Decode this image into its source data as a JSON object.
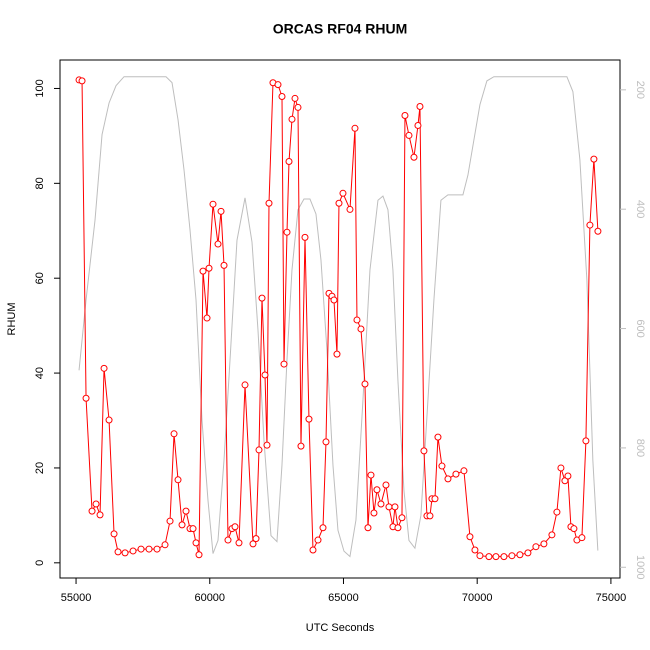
{
  "chart_data": {
    "type": "line",
    "title": "ORCAS RF04 RHUM",
    "x_label": "UTC Seconds",
    "y_label": "RHUM",
    "xlim": [
      54400,
      75340
    ],
    "ylim": [
      -3.2,
      106
    ],
    "y2lim": [
      1018,
      150
    ],
    "xticks": [
      55000,
      60000,
      65000,
      70000,
      75000
    ],
    "yticks": [
      0,
      20,
      40,
      60,
      80,
      100
    ],
    "y2ticks": [
      200,
      400,
      600,
      800,
      1000
    ],
    "series": [
      {
        "color": "#ff0000",
        "markers": true,
        "x": [
          55112,
          55224,
          55374,
          55598,
          55748,
          55897,
          56047,
          56234,
          56421,
          56570,
          56832,
          57131,
          57430,
          57729,
          58028,
          58327,
          58514,
          58664,
          58813,
          58963,
          59112,
          59262,
          59374,
          59486,
          59598,
          59748,
          59897,
          59972,
          60121,
          60308,
          60421,
          60533,
          60682,
          60832,
          60944,
          61093,
          61318,
          61617,
          61729,
          61841,
          61953,
          62065,
          62140,
          62215,
          62364,
          62551,
          62701,
          62776,
          62888,
          62963,
          63075,
          63187,
          63299,
          63411,
          63561,
          63710,
          63860,
          64047,
          64234,
          64346,
          64458,
          64570,
          64645,
          64757,
          64832,
          64981,
          65243,
          65430,
          65505,
          65654,
          65804,
          65916,
          66028,
          66140,
          66252,
          66402,
          66589,
          66701,
          66850,
          66925,
          67037,
          67187,
          67299,
          67449,
          67636,
          67785,
          67860,
          68009,
          68121,
          68234,
          68308,
          68421,
          68533,
          68682,
          68907,
          69206,
          69505,
          69729,
          69916,
          70103,
          70439,
          70701,
          71000,
          71299,
          71598,
          71897,
          72196,
          72495,
          72794,
          72981,
          73131,
          73280,
          73393,
          73505,
          73617,
          73729,
          73916,
          74065,
          74215,
          74364,
          74514
        ],
        "values": [
          101.8,
          101.6,
          34.7,
          10.9,
          12.4,
          10.1,
          41.0,
          30.1,
          6.1,
          2.3,
          2.1,
          2.5,
          2.9,
          2.9,
          2.9,
          3.8,
          8.8,
          27.2,
          17.5,
          8.0,
          10.9,
          7.2,
          7.2,
          4.2,
          1.7,
          61.5,
          51.6,
          62.1,
          75.6,
          67.2,
          74.1,
          62.7,
          4.8,
          7.2,
          7.6,
          4.2,
          37.5,
          4.0,
          5.1,
          23.8,
          55.8,
          39.6,
          24.8,
          75.8,
          101.2,
          100.8,
          98.3,
          41.9,
          69.7,
          84.6,
          93.5,
          97.9,
          96.0,
          24.6,
          68.6,
          30.3,
          2.7,
          4.8,
          7.4,
          25.5,
          56.8,
          56.2,
          55.4,
          44.0,
          75.8,
          77.9,
          74.5,
          91.6,
          51.2,
          49.3,
          37.7,
          7.4,
          18.5,
          10.5,
          15.4,
          12.4,
          16.4,
          11.8,
          7.6,
          11.8,
          7.4,
          9.5,
          94.3,
          90.1,
          85.5,
          92.2,
          96.2,
          23.6,
          9.9,
          9.9,
          13.5,
          13.5,
          26.5,
          20.4,
          17.7,
          18.7,
          19.4,
          5.5,
          2.7,
          1.5,
          1.3,
          1.3,
          1.3,
          1.5,
          1.7,
          2.1,
          3.4,
          4.0,
          5.9,
          10.7,
          20.0,
          17.3,
          18.3,
          7.6,
          7.2,
          4.8,
          5.3,
          25.7,
          71.2,
          85.1,
          69.9
        ]
      },
      {
        "color": "#bebebe",
        "axis": "y2",
        "markers": false,
        "x": [
          55112,
          55374,
          55710,
          55972,
          56234,
          56495,
          56794,
          58364,
          58589,
          58813,
          59037,
          59262,
          59486,
          59710,
          59934,
          60121,
          60308,
          60532,
          60757,
          61018,
          61318,
          61579,
          61804,
          62027,
          62289,
          62513,
          62700,
          62887,
          63074,
          63298,
          63523,
          63747,
          63971,
          64158,
          64382,
          64607,
          64794,
          65018,
          65242,
          65466,
          65728,
          65990,
          66289,
          66476,
          66663,
          66849,
          67036,
          67261,
          67448,
          67672,
          67896,
          68158,
          68382,
          68644,
          68905,
          69167,
          69466,
          69653,
          69877,
          70102,
          70363,
          70625,
          73354,
          73579,
          73840,
          74102,
          74325,
          74512
        ],
        "values": [
          670,
          552,
          418,
          275,
          222,
          193,
          178,
          178,
          188,
          250,
          334,
          435,
          552,
          754,
          888,
          977,
          955,
          821,
          653,
          452,
          381,
          455,
          603,
          787,
          947,
          957,
          829,
          653,
          502,
          401,
          383,
          383,
          408,
          485,
          636,
          829,
          938,
          973,
          982,
          921,
          720,
          502,
          385,
          378,
          401,
          502,
          687,
          871,
          955,
          968,
          913,
          720,
          552,
          385,
          376,
          376,
          376,
          343,
          284,
          225,
          185,
          178,
          178,
          203,
          317,
          519,
          821,
          972
        ]
      }
    ]
  }
}
